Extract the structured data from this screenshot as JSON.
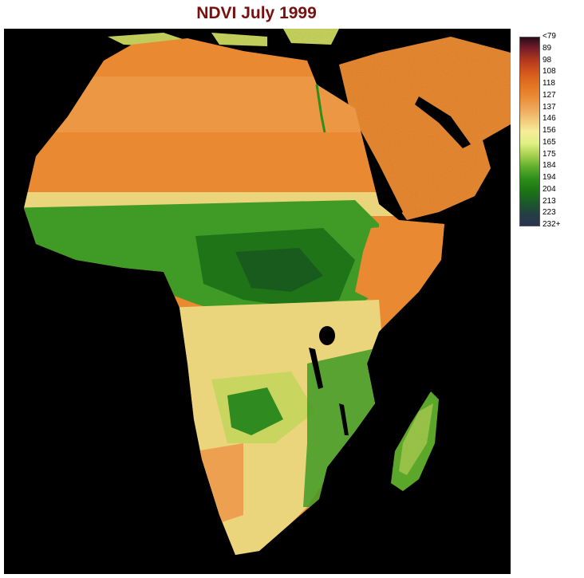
{
  "title": "NDVI July 1999",
  "colors": {
    "title": "#7a0f0f",
    "ocean": "#000000",
    "desert": "#e98a32",
    "desert_light": "#eca050",
    "sahel_yellow": "#ead57c",
    "savanna": "#c8d55e",
    "green": "#3f9a26",
    "forest": "#1f7418",
    "deep_forest": "#195b1c"
  },
  "legend": {
    "labels": [
      "<79",
      "89",
      "98",
      "108",
      "118",
      "127",
      "137",
      "146",
      "156",
      "165",
      "175",
      "184",
      "194",
      "204",
      "213",
      "223",
      "232+"
    ],
    "colors": [
      "#2a0c16",
      "#7a1f2a",
      "#b53a1c",
      "#d6581a",
      "#e27324",
      "#e98a32",
      "#eea55a",
      "#f2c879",
      "#f6ed9a",
      "#dfef83",
      "#a8d14f",
      "#5fae2d",
      "#2d8f1a",
      "#1c7515",
      "#1b5b28",
      "#223f42",
      "#2a3550"
    ]
  }
}
